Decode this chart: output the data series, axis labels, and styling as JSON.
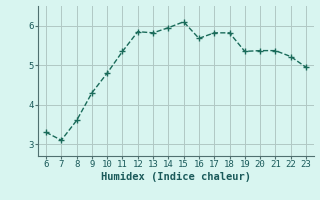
{
  "x": [
    6,
    7,
    8,
    9,
    10,
    11,
    12,
    13,
    14,
    15,
    16,
    17,
    18,
    19,
    20,
    21,
    22,
    23
  ],
  "y": [
    3.3,
    3.1,
    3.6,
    4.3,
    4.8,
    5.35,
    5.85,
    5.82,
    5.95,
    6.1,
    5.68,
    5.82,
    5.82,
    5.35,
    5.37,
    5.37,
    5.22,
    4.95
  ],
  "line_color": "#1a6b5a",
  "marker": "+",
  "marker_size": 4,
  "linewidth": 1.0,
  "linestyle": "--",
  "bg_color": "#d8f5f0",
  "grid_color": "#b0c8c4",
  "xlabel": "Humidex (Indice chaleur)",
  "xlabel_fontsize": 7.5,
  "tick_fontsize": 6.5,
  "xlim": [
    5.5,
    23.5
  ],
  "ylim": [
    2.7,
    6.5
  ],
  "yticks": [
    3,
    4,
    5,
    6
  ],
  "xticks": [
    6,
    7,
    8,
    9,
    10,
    11,
    12,
    13,
    14,
    15,
    16,
    17,
    18,
    19,
    20,
    21,
    22,
    23
  ]
}
